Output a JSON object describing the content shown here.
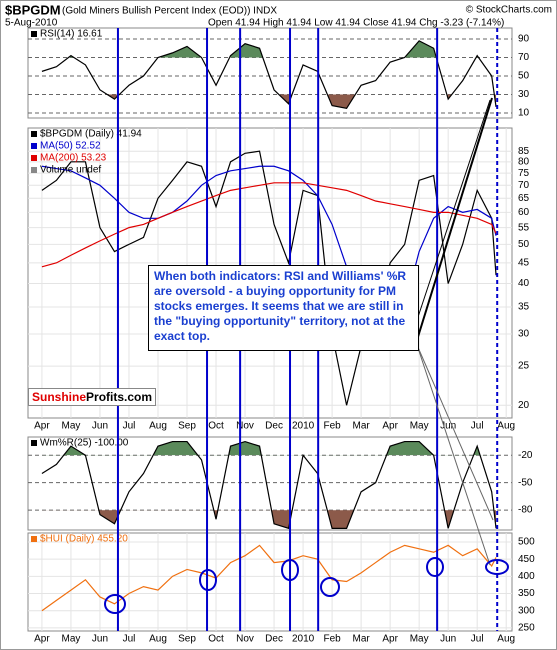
{
  "header": {
    "title": "$BPGDM",
    "subtitle": "(Gold Miners Bullish Percent Index (EOD)) INDX",
    "date": "5-Aug-2010",
    "quote": "Open 41.94 High 41.94 Low 41.94 Close 41.94 Chg -3.23 (-7.14%)",
    "source": "© StockCharts.com"
  },
  "annotation": "When both indicators: RSI and Williams' %R are oversold - a buying opportunity for PM stocks emerges. It seems that we are still in the \"buying opportunity\" territory, not at the exact top.",
  "logo": [
    "Sunshine",
    "Profits.com"
  ],
  "highlights": {
    "color": "#0000cc",
    "x": [
      2.62,
      5.69,
      6.83,
      8.55,
      9.52,
      13.62
    ],
    "dashed_x": [
      15.69
    ]
  },
  "chart_data": [
    {
      "type": "line",
      "xlim": [
        -0.48,
        16.2
      ],
      "ylim": [
        4.6,
        101.9
      ],
      "yticks": [
        10,
        30,
        50,
        70,
        90
      ],
      "grid": "dashed",
      "overbought": 70,
      "oversold": 30,
      "overbought_color": "#5b8a5b",
      "oversold_color": "#8c5a4a",
      "x": [
        0,
        0.5,
        1,
        1.5,
        2,
        2.5,
        3,
        3.5,
        4,
        4.5,
        5,
        5.5,
        6,
        6.5,
        7,
        7.5,
        8,
        8.5,
        9,
        9.5,
        10,
        10.5,
        11,
        11.5,
        12,
        12.5,
        13,
        13.5,
        14,
        14.5,
        15,
        15.5,
        15.65
      ],
      "series": [
        {
          "name": "RSI(14) 16.61",
          "color": "#000000",
          "values": [
            55,
            60,
            72,
            62,
            35,
            25,
            40,
            50,
            70,
            75,
            82,
            70,
            40,
            72,
            85,
            80,
            35,
            20,
            62,
            55,
            18,
            15,
            40,
            45,
            65,
            70,
            88,
            80,
            25,
            45,
            72,
            50,
            16.61
          ]
        }
      ]
    },
    {
      "type": "line",
      "log": true,
      "xlim": [
        -0.48,
        16.2
      ],
      "ylim": [
        18.6,
        97
      ],
      "yticks": [
        20,
        25,
        30,
        35,
        40,
        45,
        50,
        55,
        60,
        65,
        70,
        75,
        80,
        85
      ],
      "grid": "solid",
      "xticks": [
        {
          "value": 0,
          "label": "Apr"
        },
        {
          "value": 1,
          "label": "May"
        },
        {
          "value": 2,
          "label": "Jun"
        },
        {
          "value": 3,
          "label": "Jul"
        },
        {
          "value": 4,
          "label": "Aug"
        },
        {
          "value": 5,
          "label": "Sep"
        },
        {
          "value": 6,
          "label": "Oct"
        },
        {
          "value": 7,
          "label": "Nov"
        },
        {
          "value": 8,
          "label": "Dec"
        },
        {
          "value": 9,
          "label": "2010"
        },
        {
          "value": 10,
          "label": "Feb"
        },
        {
          "value": 11,
          "label": "Mar"
        },
        {
          "value": 12,
          "label": "Apr"
        },
        {
          "value": 13,
          "label": "May"
        },
        {
          "value": 14,
          "label": "Jun"
        },
        {
          "value": 15,
          "label": "Jul"
        },
        {
          "value": 16,
          "label": "Aug"
        }
      ],
      "x": [
        0,
        0.5,
        1,
        1.5,
        2,
        2.5,
        3,
        3.5,
        4,
        4.5,
        5,
        5.5,
        6,
        6.5,
        7,
        7.5,
        8,
        8.5,
        9,
        9.5,
        10,
        10.5,
        11,
        11.5,
        12,
        12.5,
        13,
        13.5,
        14,
        14.5,
        15,
        15.5,
        15.65
      ],
      "series": [
        {
          "name": "$BPGDM (Daily) 41.94",
          "color": "#000000",
          "values": [
            68,
            72,
            80,
            80,
            55,
            48,
            50,
            52,
            65,
            72,
            80,
            78,
            62,
            80,
            84,
            85,
            56,
            45,
            68,
            66,
            30,
            20,
            28,
            30,
            45,
            50,
            72,
            74,
            40,
            50,
            68,
            58,
            41.94
          ]
        },
        {
          "name": "MA(50) 52.52",
          "color": "#0000cc",
          "values": [
            78,
            77,
            76,
            73,
            70,
            65,
            60,
            58,
            58,
            60,
            64,
            70,
            74,
            76,
            77,
            78,
            78,
            76,
            72,
            66,
            56,
            44,
            34,
            30,
            28,
            35,
            48,
            58,
            62,
            60,
            61,
            58,
            52.52
          ]
        },
        {
          "name": "MA(200) 53.23",
          "color": "#e00000",
          "values": [
            44,
            45,
            47,
            49,
            51,
            53,
            55,
            56,
            58,
            60,
            62,
            64,
            66,
            68,
            69,
            70,
            71,
            71,
            71,
            70,
            69,
            68,
            66,
            64,
            63,
            62,
            61,
            60,
            60,
            59,
            58,
            56,
            53.23
          ]
        }
      ],
      "legend_extra": "Volume undef"
    },
    {
      "type": "line",
      "xlim": [
        -0.48,
        16.2
      ],
      "ylim": [
        -101.8,
        0
      ],
      "yticks": [
        -20,
        -50,
        -80
      ],
      "grid": "dashed",
      "overbought": -20,
      "oversold": -80,
      "overbought_color": "#5b8a5b",
      "oversold_color": "#8c5a4a",
      "x": [
        0,
        0.5,
        1,
        1.5,
        2,
        2.5,
        3,
        3.5,
        4,
        4.5,
        5,
        5.5,
        6,
        6.5,
        7,
        7.5,
        8,
        8.5,
        9,
        9.5,
        10,
        10.5,
        11,
        11.5,
        12,
        12.5,
        13,
        13.5,
        14,
        14.5,
        15,
        15.5,
        15.65
      ],
      "series": [
        {
          "name": "Wm%R(25) -100.00",
          "color": "#000000",
          "values": [
            -40,
            -30,
            -10,
            -20,
            -85,
            -95,
            -60,
            -40,
            -10,
            -5,
            -5,
            -25,
            -90,
            -10,
            -5,
            -10,
            -95,
            -100,
            -20,
            -40,
            -100,
            -100,
            -60,
            -50,
            -10,
            -5,
            -5,
            -20,
            -100,
            -50,
            -10,
            -60,
            -100
          ]
        }
      ]
    },
    {
      "type": "line",
      "xlim": [
        -0.48,
        16.2
      ],
      "ylim": [
        241,
        526
      ],
      "yticks": [
        250,
        300,
        350,
        400,
        450,
        500
      ],
      "grid": "solid",
      "xticks": [
        {
          "value": 0,
          "label": "Apr"
        },
        {
          "value": 1,
          "label": "May"
        },
        {
          "value": 2,
          "label": "Jun"
        },
        {
          "value": 3,
          "label": "Jul"
        },
        {
          "value": 4,
          "label": "Aug"
        },
        {
          "value": 5,
          "label": "Sep"
        },
        {
          "value": 6,
          "label": "Oct"
        },
        {
          "value": 7,
          "label": "Nov"
        },
        {
          "value": 8,
          "label": "Dec"
        },
        {
          "value": 9,
          "label": "2010"
        },
        {
          "value": 10,
          "label": "Feb"
        },
        {
          "value": 11,
          "label": "Mar"
        },
        {
          "value": 12,
          "label": "Apr"
        },
        {
          "value": 13,
          "label": "May"
        },
        {
          "value": 14,
          "label": "Jun"
        },
        {
          "value": 15,
          "label": "Jul"
        },
        {
          "value": 16,
          "label": "Aug"
        }
      ],
      "x": [
        0,
        0.5,
        1,
        1.5,
        2,
        2.5,
        3,
        3.5,
        4,
        4.5,
        5,
        5.5,
        6,
        6.5,
        7,
        7.5,
        8,
        8.5,
        9,
        9.5,
        10,
        10.5,
        11,
        11.5,
        12,
        12.5,
        13,
        13.5,
        14,
        14.5,
        15,
        15.5,
        15.65
      ],
      "series": [
        {
          "name": "$HUI (Daily) 455.20",
          "color": "#f07010",
          "values": [
            300,
            330,
            360,
            390,
            340,
            320,
            350,
            370,
            360,
            400,
            420,
            410,
            395,
            440,
            460,
            490,
            440,
            445,
            460,
            450,
            390,
            385,
            410,
            440,
            470,
            490,
            480,
            470,
            490,
            460,
            480,
            430,
            455.2
          ]
        }
      ]
    }
  ]
}
